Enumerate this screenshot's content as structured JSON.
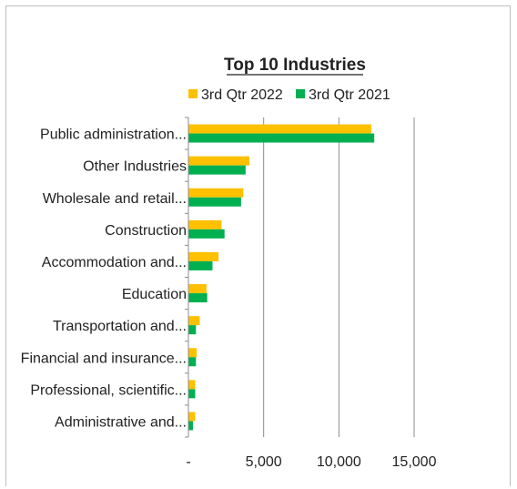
{
  "chart_data": {
    "type": "bar",
    "orientation": "horizontal",
    "title": "Top 10 Industries",
    "categories": [
      "Public administration...",
      "Other Industries",
      "Wholesale and retail...",
      "Construction",
      "Accommodation and...",
      "Education",
      "Transportation and...",
      "Financial and insurance...",
      "Professional, scientific...",
      "Administrative and..."
    ],
    "series": [
      {
        "name": "3rd Qtr 2022",
        "color": "#FFC000",
        "values": [
          12150,
          4050,
          3650,
          2200,
          2000,
          1200,
          750,
          550,
          450,
          450
        ]
      },
      {
        "name": "3rd Qtr 2021",
        "color": "#00B050",
        "values": [
          12350,
          3800,
          3500,
          2400,
          1600,
          1250,
          500,
          500,
          450,
          300
        ]
      }
    ],
    "xlim": [
      0,
      15000
    ],
    "xticks": [
      0,
      5000,
      10000,
      15000
    ],
    "xtick_labels": [
      "-",
      "5,000",
      "10,000",
      "15,000"
    ],
    "grid": true,
    "legend_position": "top"
  }
}
